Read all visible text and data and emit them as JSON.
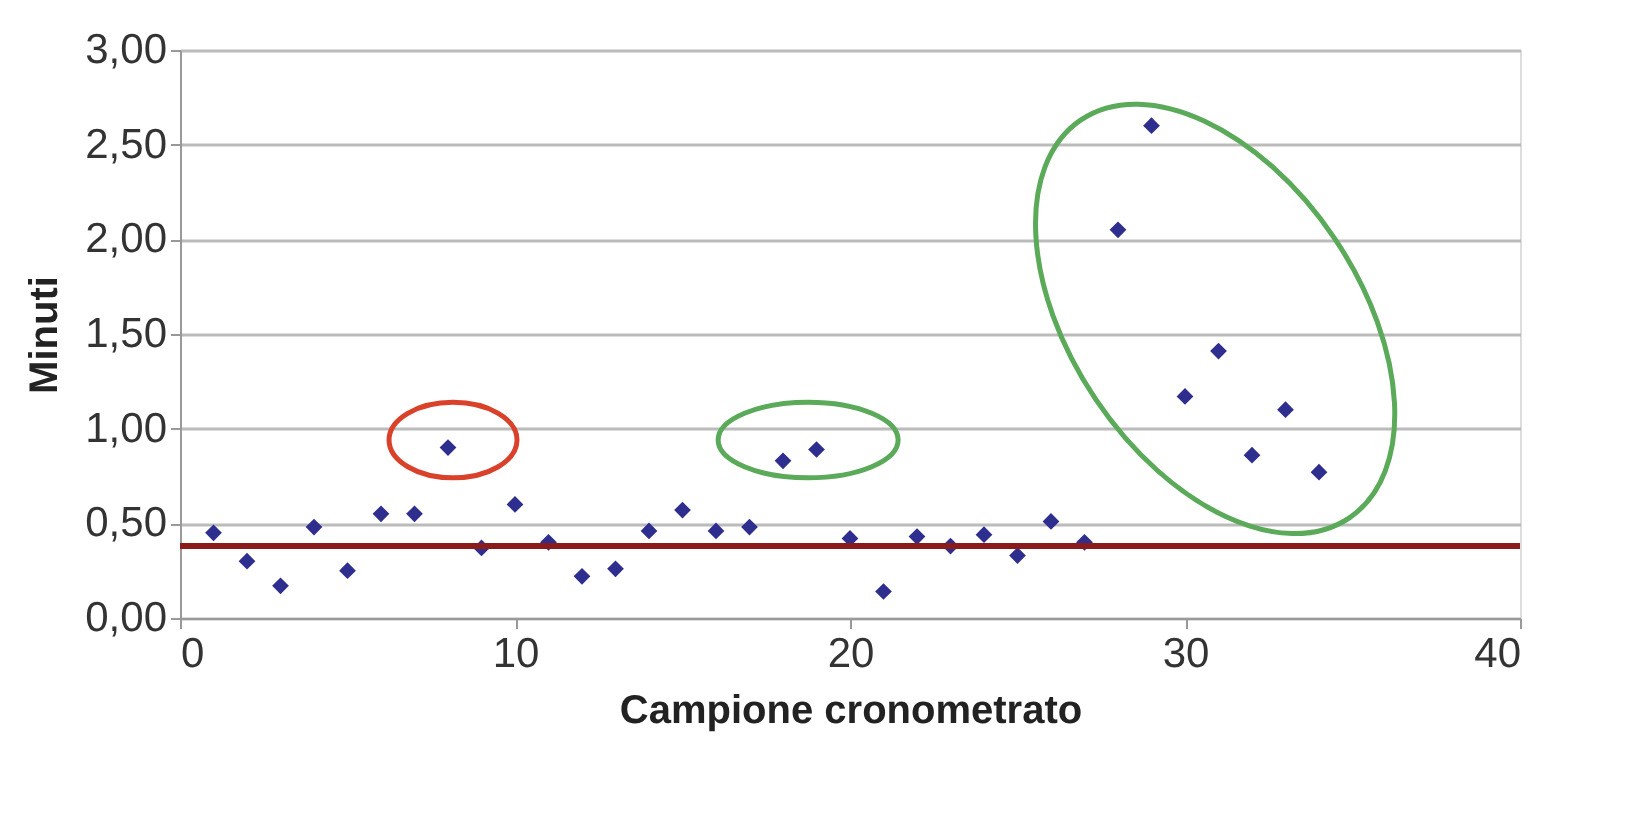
{
  "chart_data": {
    "type": "scatter",
    "xlabel": "Campione cronometrato",
    "ylabel": "Minuti",
    "x": [
      1,
      2,
      3,
      4,
      5,
      6,
      7,
      8,
      9,
      10,
      11,
      12,
      13,
      14,
      15,
      16,
      17,
      18,
      19,
      20,
      21,
      22,
      23,
      24,
      25,
      26,
      27,
      28,
      29,
      30,
      31,
      32,
      33,
      34
    ],
    "series": [
      {
        "color": "#2e2e8f",
        "values": [
          0.45,
          0.3,
          0.17,
          0.48,
          0.25,
          0.55,
          0.55,
          0.9,
          0.37,
          0.6,
          0.4,
          0.22,
          0.26,
          0.46,
          0.57,
          0.46,
          0.48,
          0.83,
          0.89,
          0.42,
          0.14,
          0.43,
          0.38,
          0.44,
          0.33,
          0.51,
          0.4,
          2.05,
          2.6,
          1.17,
          1.41,
          0.86,
          1.1,
          0.77
        ]
      }
    ],
    "xlim": [
      0,
      40
    ],
    "xticks": [
      0,
      10,
      20,
      30,
      40
    ],
    "ylim": [
      0,
      3
    ],
    "yticks": [
      {
        "value": 0,
        "label": "0,00"
      },
      {
        "value": 0.5,
        "label": "0,50"
      },
      {
        "value": 1,
        "label": "1,00"
      },
      {
        "value": 1.5,
        "label": "1,50"
      },
      {
        "value": 2,
        "label": "2,00"
      },
      {
        "value": 2.5,
        "label": "2,50"
      },
      {
        "value": 3,
        "label": "3,00"
      }
    ],
    "ref_lines": [
      {
        "axis": "y",
        "value": 0.38,
        "color": "#8b1a1a"
      }
    ],
    "grid": "y",
    "marker": "diamond"
  }
}
